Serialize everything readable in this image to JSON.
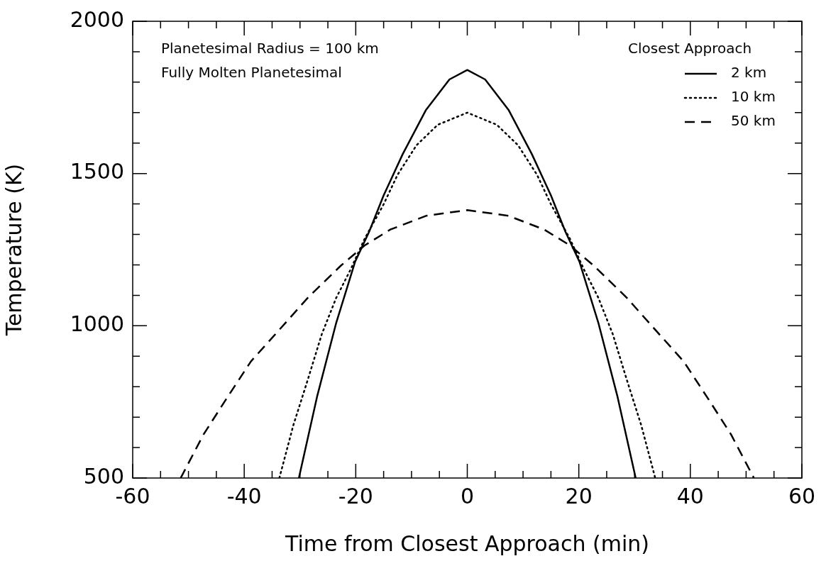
{
  "chart_data": {
    "type": "line",
    "xlabel": "Time from Closest Approach (min)",
    "ylabel": "Temperature (K)",
    "legend": "top right",
    "legend_title": "Closest Approach",
    "grid": false,
    "marker": "none",
    "annotations": [
      "Planetesimal Radius = 100 km",
      "Fully Molten Planetesimal"
    ],
    "xlim": [
      -60,
      60
    ],
    "ylim": [
      500,
      2000
    ],
    "xticks": [
      -60,
      {
        "value": -55,
        "label": null
      },
      {
        "value": -50,
        "label": null
      },
      {
        "value": -45,
        "label": null
      },
      -40,
      {
        "value": -35,
        "label": null
      },
      {
        "value": -30,
        "label": null
      },
      {
        "value": -25,
        "label": null
      },
      -20,
      {
        "value": -15,
        "label": null
      },
      {
        "value": -10,
        "label": null
      },
      {
        "value": -5,
        "label": null
      },
      0,
      {
        "value": 5,
        "label": null
      },
      {
        "value": 10,
        "label": null
      },
      {
        "value": 15,
        "label": null
      },
      20,
      {
        "value": 25,
        "label": null
      },
      {
        "value": 30,
        "label": null
      },
      {
        "value": 35,
        "label": null
      },
      40,
      {
        "value": 45,
        "label": null
      },
      {
        "value": 50,
        "label": null
      },
      {
        "value": 55,
        "label": null
      },
      60
    ],
    "yticks": [
      500,
      {
        "value": 600,
        "label": null
      },
      {
        "value": 700,
        "label": null
      },
      {
        "value": 800,
        "label": null
      },
      {
        "value": 900,
        "label": null
      },
      1000,
      {
        "value": 1100,
        "label": null
      },
      {
        "value": 1200,
        "label": null
      },
      {
        "value": 1300,
        "label": null
      },
      {
        "value": 1400,
        "label": null
      },
      1500,
      {
        "value": 1600,
        "label": null
      },
      {
        "value": 1700,
        "label": null
      },
      {
        "value": 1800,
        "label": null
      },
      {
        "value": 1900,
        "label": null
      },
      2000
    ],
    "series": [
      {
        "name": "2 km",
        "color": "#000000",
        "line_style": "solid",
        "x": [
          -30.2,
          -26.9,
          -23.5,
          -20.1,
          -17.6,
          -15,
          -11.6,
          -7.4,
          -3.2,
          0,
          3.2,
          7.4,
          11.6,
          15,
          17.6,
          20.1,
          23.5,
          26.9,
          30.2
        ],
        "values": [
          500,
          770,
          1010,
          1211,
          1309,
          1428,
          1563,
          1709,
          1809,
          1840,
          1809,
          1709,
          1563,
          1428,
          1309,
          1211,
          1010,
          770,
          500
        ]
      },
      {
        "name": "10 km",
        "color": "#000000",
        "line_style": "dotted",
        "x": [
          -33.7,
          -31.2,
          -28.6,
          -26.1,
          -23.5,
          -21,
          -18.4,
          -15,
          -12.5,
          -9.1,
          -5.3,
          0,
          5.3,
          9.1,
          12.5,
          15,
          18.4,
          21,
          23.5,
          26.1,
          28.6,
          31.2,
          33.7
        ],
        "values": [
          500,
          673,
          823,
          972,
          1092,
          1182,
          1286,
          1399,
          1496,
          1593,
          1660,
          1700,
          1660,
          1593,
          1496,
          1399,
          1286,
          1182,
          1092,
          972,
          823,
          673,
          500
        ]
      },
      {
        "name": "50 km",
        "color": "#000000",
        "line_style": "dashed",
        "x": [
          -51.4,
          -47.3,
          -43.1,
          -38.8,
          -33.7,
          -28.6,
          -22.7,
          -18.4,
          -13.8,
          -7.4,
          0,
          7.4,
          13.8,
          18.4,
          22.7,
          28.6,
          33.7,
          38.8,
          43.1,
          47.3,
          51.4
        ],
        "values": [
          500,
          643,
          763,
          883,
          987,
          1092,
          1197,
          1264,
          1316,
          1361,
          1380,
          1361,
          1316,
          1264,
          1197,
          1092,
          987,
          883,
          763,
          643,
          500
        ]
      }
    ]
  }
}
